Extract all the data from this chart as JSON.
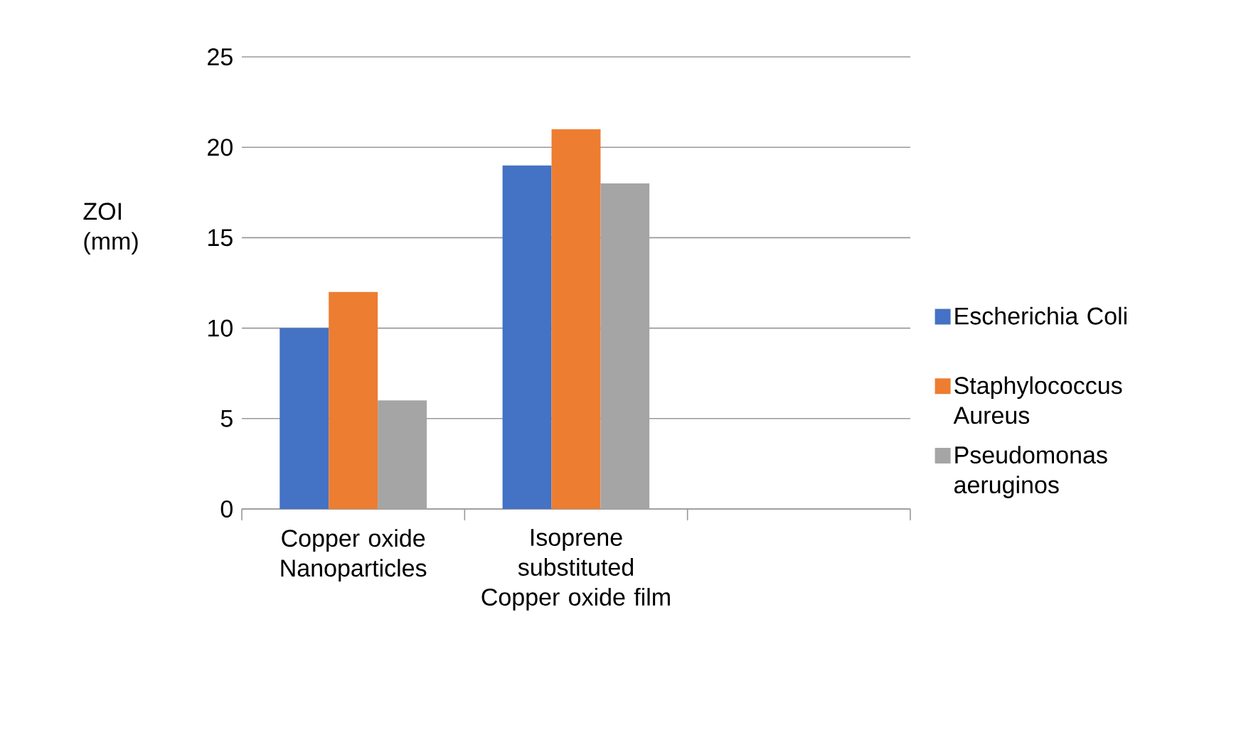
{
  "chart_data": {
    "type": "bar",
    "ylabel": "ZOI (mm)",
    "categories": [
      "Copper oxide Nanoparticles",
      "Isoprene substituted Copper oxide film",
      null
    ],
    "series": [
      {
        "name": "Escherichia Coli",
        "color": "#4472c4",
        "values": [
          10,
          19,
          null
        ]
      },
      {
        "name": "Staphylococcus Aureus",
        "color": "#ed7d31",
        "values": [
          12,
          21,
          null
        ]
      },
      {
        "name": "Pseudomonas aeruginos",
        "color": "#a5a5a5",
        "values": [
          6,
          18,
          null
        ]
      }
    ],
    "ylim": [
      0,
      25
    ],
    "yticks": [
      0,
      5,
      10,
      15,
      20,
      25
    ],
    "grid": "y",
    "legend": "right"
  }
}
